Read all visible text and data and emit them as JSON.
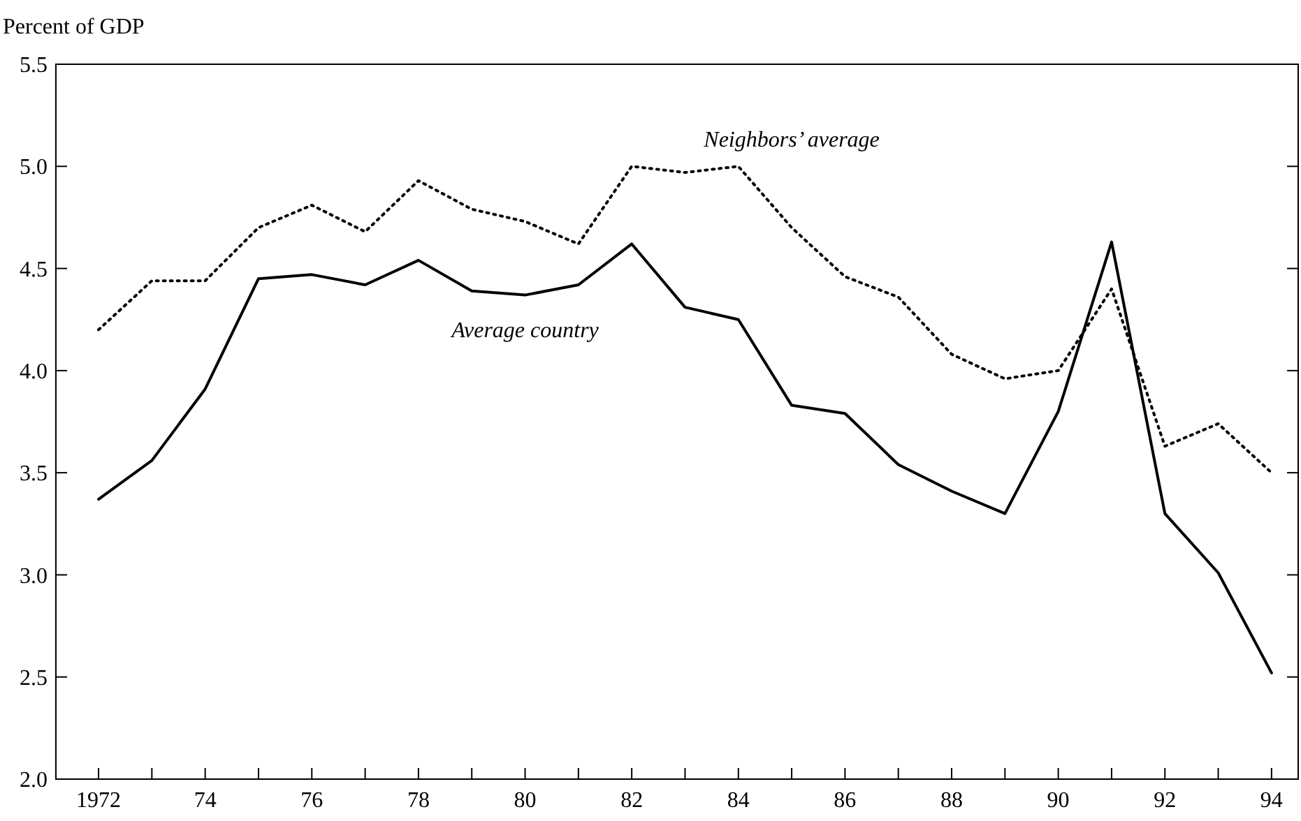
{
  "chart_data": {
    "type": "line",
    "ylabel": "Percent of GDP",
    "x": [
      1972,
      1973,
      1974,
      1975,
      1976,
      1977,
      1978,
      1979,
      1980,
      1981,
      1982,
      1983,
      1984,
      1985,
      1986,
      1987,
      1988,
      1989,
      1990,
      1991,
      1992,
      1993,
      1994
    ],
    "series": [
      {
        "name": "Neighbors’ average",
        "color": "#000000",
        "line_style": "dotted",
        "values": [
          4.2,
          4.44,
          4.44,
          4.7,
          4.81,
          4.68,
          4.93,
          4.79,
          4.73,
          4.62,
          5.0,
          4.97,
          5.0,
          4.7,
          4.46,
          4.36,
          4.08,
          3.96,
          4.0,
          4.4,
          3.63,
          3.74,
          3.5
        ]
      },
      {
        "name": "Average country",
        "color": "#000000",
        "line_style": "solid",
        "values": [
          3.37,
          3.56,
          3.91,
          4.45,
          4.47,
          4.42,
          4.54,
          4.39,
          4.37,
          4.42,
          4.62,
          4.31,
          4.25,
          3.83,
          3.79,
          3.54,
          3.41,
          3.3,
          3.8,
          4.63,
          3.3,
          3.01,
          2.52
        ]
      }
    ],
    "xlim": [
      1971.2,
      1994.5
    ],
    "xticks": [
      1972,
      {
        "value": 1973,
        "label": null
      },
      {
        "value": 1974,
        "label": "74"
      },
      {
        "value": 1975,
        "label": null
      },
      {
        "value": 1976,
        "label": "76"
      },
      {
        "value": 1977,
        "label": null
      },
      {
        "value": 1978,
        "label": "78"
      },
      {
        "value": 1979,
        "label": null
      },
      {
        "value": 1980,
        "label": "80"
      },
      {
        "value": 1981,
        "label": null
      },
      {
        "value": 1982,
        "label": "82"
      },
      {
        "value": 1983,
        "label": null
      },
      {
        "value": 1984,
        "label": "84"
      },
      {
        "value": 1985,
        "label": null
      },
      {
        "value": 1986,
        "label": "86"
      },
      {
        "value": 1987,
        "label": null
      },
      {
        "value": 1988,
        "label": "88"
      },
      {
        "value": 1989,
        "label": null
      },
      {
        "value": 1990,
        "label": "90"
      },
      {
        "value": 1991,
        "label": null
      },
      {
        "value": 1992,
        "label": "92"
      },
      {
        "value": 1993,
        "label": null
      },
      {
        "value": 1994,
        "label": "94"
      }
    ],
    "ylim": [
      2.0,
      5.5
    ],
    "yticks": [
      {
        "value": 2,
        "label": "2.0"
      },
      2.5,
      {
        "value": 3,
        "label": "3.0"
      },
      3.5,
      {
        "value": 4,
        "label": "4.0"
      },
      4.5,
      {
        "value": 5,
        "label": "5.0"
      },
      5.5
    ],
    "grid": false,
    "marker": "none"
  }
}
